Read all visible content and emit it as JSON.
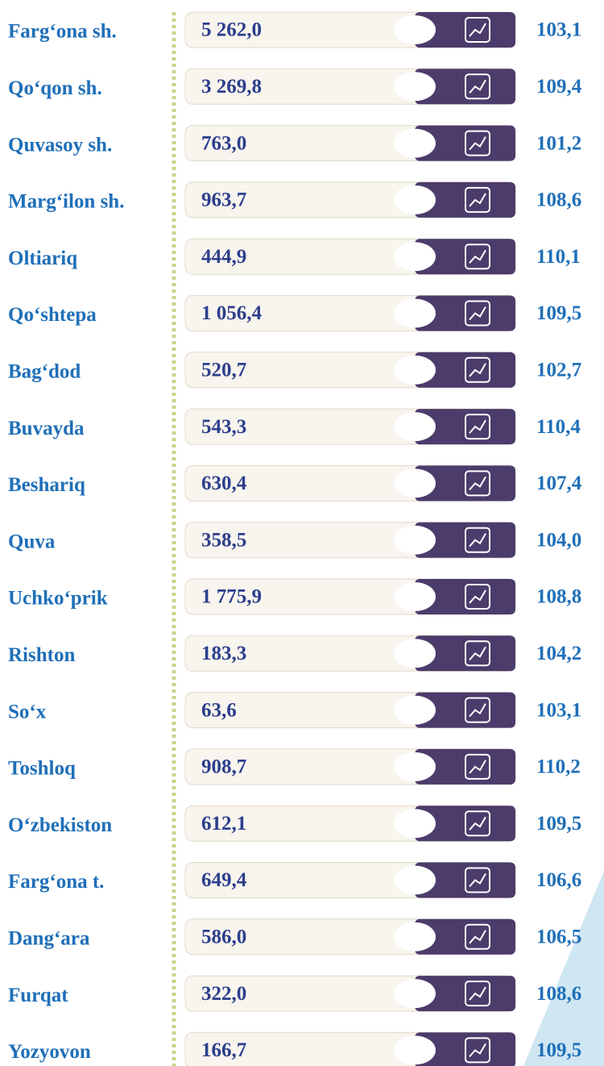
{
  "rows": [
    {
      "name": "Farg‘ona sh.",
      "value": "5 262,0",
      "index": "103,1"
    },
    {
      "name": "Qo‘qon sh.",
      "value": "3 269,8",
      "index": "109,4"
    },
    {
      "name": "Quvasoy sh.",
      "value": "763,0",
      "index": "101,2"
    },
    {
      "name": "Marg‘ilon sh.",
      "value": "963,7",
      "index": "108,6"
    },
    {
      "name": "Oltiariq",
      "value": "444,9",
      "index": "110,1"
    },
    {
      "name": "Qo‘shtepa",
      "value": "1 056,4",
      "index": "109,5"
    },
    {
      "name": "Bag‘dod",
      "value": "520,7",
      "index": "102,7"
    },
    {
      "name": "Buvayda",
      "value": "543,3",
      "index": "110,4"
    },
    {
      "name": "Beshariq",
      "value": "630,4",
      "index": "107,4"
    },
    {
      "name": "Quva",
      "value": "358,5",
      "index": "104,0"
    },
    {
      "name": "Uchko‘prik",
      "value": "1 775,9",
      "index": "108,8"
    },
    {
      "name": "Rishton",
      "value": "183,3",
      "index": "104,2"
    },
    {
      "name": "So‘x",
      "value": "63,6",
      "index": "103,1"
    },
    {
      "name": "Toshloq",
      "value": "908,7",
      "index": "110,2"
    },
    {
      "name": "O‘zbekiston",
      "value": "612,1",
      "index": "109,5"
    },
    {
      "name": "Farg‘ona t.",
      "value": "649,4",
      "index": "106,6"
    },
    {
      "name": "Dang‘ara",
      "value": "586,0",
      "index": "106,5"
    },
    {
      "name": "Furqat",
      "value": "322,0",
      "index": "108,6"
    },
    {
      "name": "Yozyovon",
      "value": "166,7",
      "index": "109,5"
    }
  ]
}
